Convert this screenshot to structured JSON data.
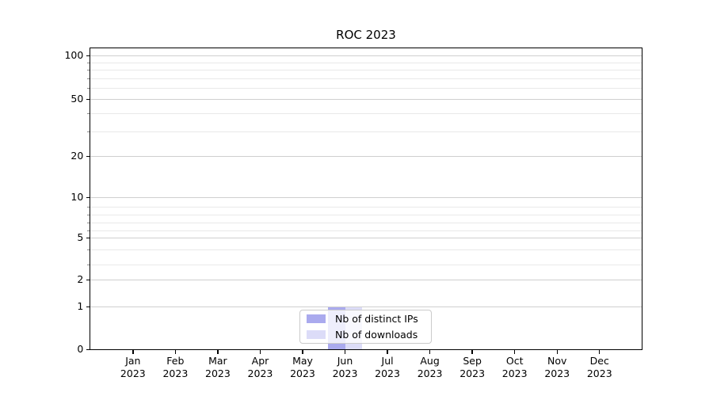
{
  "title": "ROC 2023",
  "chart_data": {
    "type": "bar",
    "title": "ROC 2023",
    "categories": [
      "Jan",
      "Feb",
      "Mar",
      "Apr",
      "May",
      "Jun",
      "Jul",
      "Aug",
      "Sep",
      "Oct",
      "Nov",
      "Dec"
    ],
    "category_year": "2023",
    "series": [
      {
        "name": "Nb of distinct IPs",
        "color": "#aaaaee",
        "values": [
          0,
          0,
          0,
          0,
          0,
          1,
          0,
          0,
          0,
          0,
          0,
          0
        ]
      },
      {
        "name": "Nb of downloads",
        "color": "#dcdcf8",
        "values": [
          0,
          0,
          0,
          0,
          0,
          1,
          0,
          0,
          0,
          0,
          0,
          0
        ]
      }
    ],
    "y_axis": {
      "scale": "symlog-like",
      "major_ticks": [
        0,
        1,
        2,
        5,
        10,
        20,
        50,
        100
      ],
      "minor_ticks": [
        3,
        4,
        6,
        7,
        8,
        9,
        30,
        40,
        60,
        70,
        80,
        90
      ],
      "range": [
        0,
        110
      ]
    },
    "x_axis": {
      "label": "",
      "tick_year_line": "2023"
    },
    "grid": "horizontal",
    "legend_position": "bottom-center-inside"
  }
}
